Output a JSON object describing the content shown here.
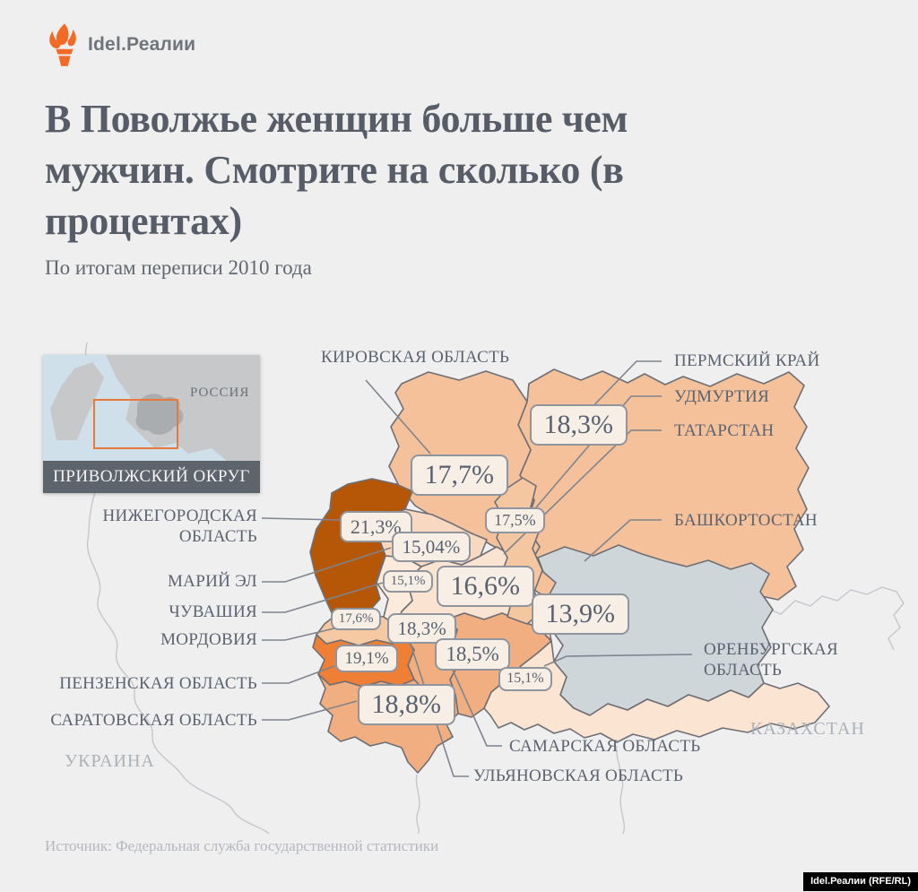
{
  "brand": {
    "logo_text": "Idel.Реалии",
    "credit_badge": "Idel.Реалии (RFE/RL)",
    "accent_color": "#f26b26"
  },
  "header": {
    "title_lines": [
      "В Поволжье женщин больше чем",
      "мужчин. Смотрите на сколько (в",
      "процентах)"
    ],
    "subtitle": "По итогам переписи 2010 года"
  },
  "inset_map": {
    "country_label": "РОССИЯ",
    "caption": "ПРИВОЛЖСКИЙ ОКРУГ",
    "highlight_box_color": "#e8793a",
    "sea_color": "#cfe0eb",
    "land_color": "#c6c8ca",
    "district_color": "#a9adb0"
  },
  "map": {
    "border_color": "#6e6f75",
    "leader_color": "#7e848d",
    "badge_bg": "#f7efe6",
    "regions": [
      {
        "id": "kirov",
        "name": "КИРОВСКАЯ ОБЛАСТЬ",
        "value": "17,7%",
        "fill": "#f4c19a"
      },
      {
        "id": "perm",
        "name": "ПЕРМСКИЙ КРАЙ",
        "value": "18,3%",
        "fill": "#f4c19a"
      },
      {
        "id": "udmurtia",
        "name": "УДМУРТИЯ",
        "value": "17,5%",
        "fill": "#f5c7a1"
      },
      {
        "id": "tatarstan",
        "name": "ТАТАРСТАН",
        "value": "16,6%",
        "fill": "#fbe3d1"
      },
      {
        "id": "bashkortostan",
        "name": "БАШКОРТОСТАН",
        "value": "13,9%",
        "fill": "#cfd6da"
      },
      {
        "id": "nizhny",
        "name": "НИЖЕГОРОДСКАЯ ОБЛАСТЬ",
        "value": "21,3%",
        "fill": "#b65607"
      },
      {
        "id": "mariel",
        "name": "МАРИЙ ЭЛ",
        "value": "15,04%",
        "fill": "#f8d8c1"
      },
      {
        "id": "chuvashia",
        "name": "ЧУВАШИЯ",
        "value": "15,1%",
        "fill": "#fceadd"
      },
      {
        "id": "mordovia",
        "name": "МОРДОВИЯ",
        "value": "17,6%",
        "fill": "#f6c9a3"
      },
      {
        "id": "penza",
        "name": "ПЕНЗЕНСКАЯ ОБЛАСТЬ",
        "value": "19,1%",
        "fill": "#ee7f35"
      },
      {
        "id": "saratov",
        "name": "САРАТОВСКАЯ ОБЛАСТЬ",
        "value": "18,8%",
        "fill": "#f1af81"
      },
      {
        "id": "ulyanovsk",
        "name": "УЛЬЯНОВСКАЯ ОБЛАСТЬ",
        "value": "18,3%",
        "fill": "#f1af81"
      },
      {
        "id": "samara",
        "name": "САМАРСКАЯ ОБЛАСТЬ",
        "value": "18,5%",
        "fill": "#f1af81"
      },
      {
        "id": "orenburg",
        "name": "ОРЕНБУРГСКАЯ ОБЛАСТЬ",
        "value": "15,1%",
        "fill": "#fce4d3"
      }
    ],
    "neighbor_labels": [
      {
        "id": "ukraine",
        "label": "УКРАИНА"
      },
      {
        "id": "kazakhstan",
        "label": "КАЗАХСТАН"
      }
    ]
  },
  "footer": {
    "source": "Источник: Федеральная служба государственной статистики"
  },
  "chart_data": {
    "type": "heatmap",
    "subtype": "choropleth-map",
    "title": "В Поволжье женщин больше чем мужчин. Смотрите на сколько (в процентах)",
    "subtitle": "По итогам переписи 2010 года",
    "categories": [
      "Кировская область",
      "Пермский край",
      "Удмуртия",
      "Татарстан",
      "Башкортостан",
      "Нижегородская область",
      "Марий Эл",
      "Чувашия",
      "Мордовия",
      "Пензенская область",
      "Саратовская область",
      "Ульяновская область",
      "Самарская область",
      "Оренбургская область"
    ],
    "values": [
      17.7,
      18.3,
      17.5,
      16.6,
      13.9,
      21.3,
      15.04,
      15.1,
      17.6,
      19.1,
      18.8,
      18.3,
      18.5,
      15.1
    ],
    "unit": "%",
    "value_meaning": "на сколько процентов женщин больше чем мужчин, перепись 2010",
    "source": "Федеральная служба государственной статистики",
    "legend_position": "none",
    "annotations": [
      "УКРАИНА",
      "КАЗАХСТАН",
      "РОССИЯ",
      "ПРИВОЛЖСКИЙ ОКРУГ"
    ]
  }
}
